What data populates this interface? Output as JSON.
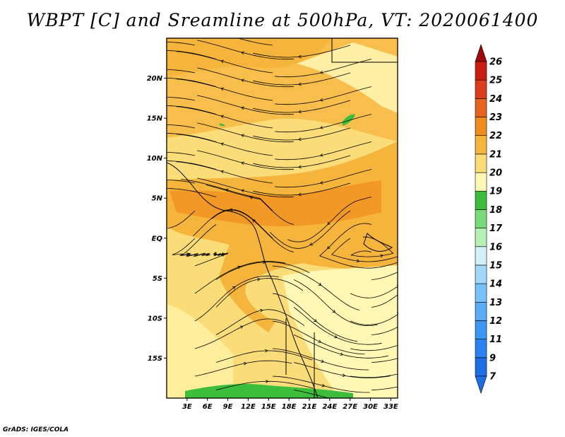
{
  "title": "WBPT [C] and Sreamline at 500hPa, VT: 2020061400",
  "credit": "GrADS: IGES/COLA",
  "map": {
    "lon_range": [
      0,
      34
    ],
    "lat_range": [
      -20,
      25
    ],
    "lat_ticks": [
      "20N",
      "15N",
      "10N",
      "5N",
      "EQ",
      "5S",
      "10S",
      "15S"
    ],
    "lat_values": [
      20,
      15,
      10,
      5,
      0,
      -5,
      -10,
      -15
    ],
    "lon_ticks": [
      "3E",
      "6E",
      "9E",
      "12E",
      "15E",
      "18E",
      "21E",
      "24E",
      "27E",
      "30E",
      "33E"
    ],
    "lon_values": [
      3,
      6,
      9,
      12,
      15,
      18,
      21,
      24,
      27,
      30,
      33
    ],
    "field": "WBPT",
    "units": "C",
    "level": "500hPa"
  },
  "colorbar": {
    "labels": [
      "7",
      "9",
      "11",
      "12",
      "13",
      "14",
      "15",
      "16",
      "17",
      "18",
      "19",
      "20",
      "21",
      "22",
      "23",
      "24",
      "25",
      "26"
    ],
    "colors": [
      "#1e6ee6",
      "#2882f0",
      "#3c96f5",
      "#5aacf8",
      "#78c2fb",
      "#a0d8fc",
      "#d2f0fa",
      "#b4f0b4",
      "#78dc78",
      "#3cbe3c",
      "#fff8b4",
      "#fadc78",
      "#f5b43c",
      "#f08c1e",
      "#e6641e",
      "#dc3c1e",
      "#c81e14",
      "#a00a0a"
    ],
    "extend_low_color": "#1e6ee6",
    "extend_high_color": "#a00a0a"
  }
}
